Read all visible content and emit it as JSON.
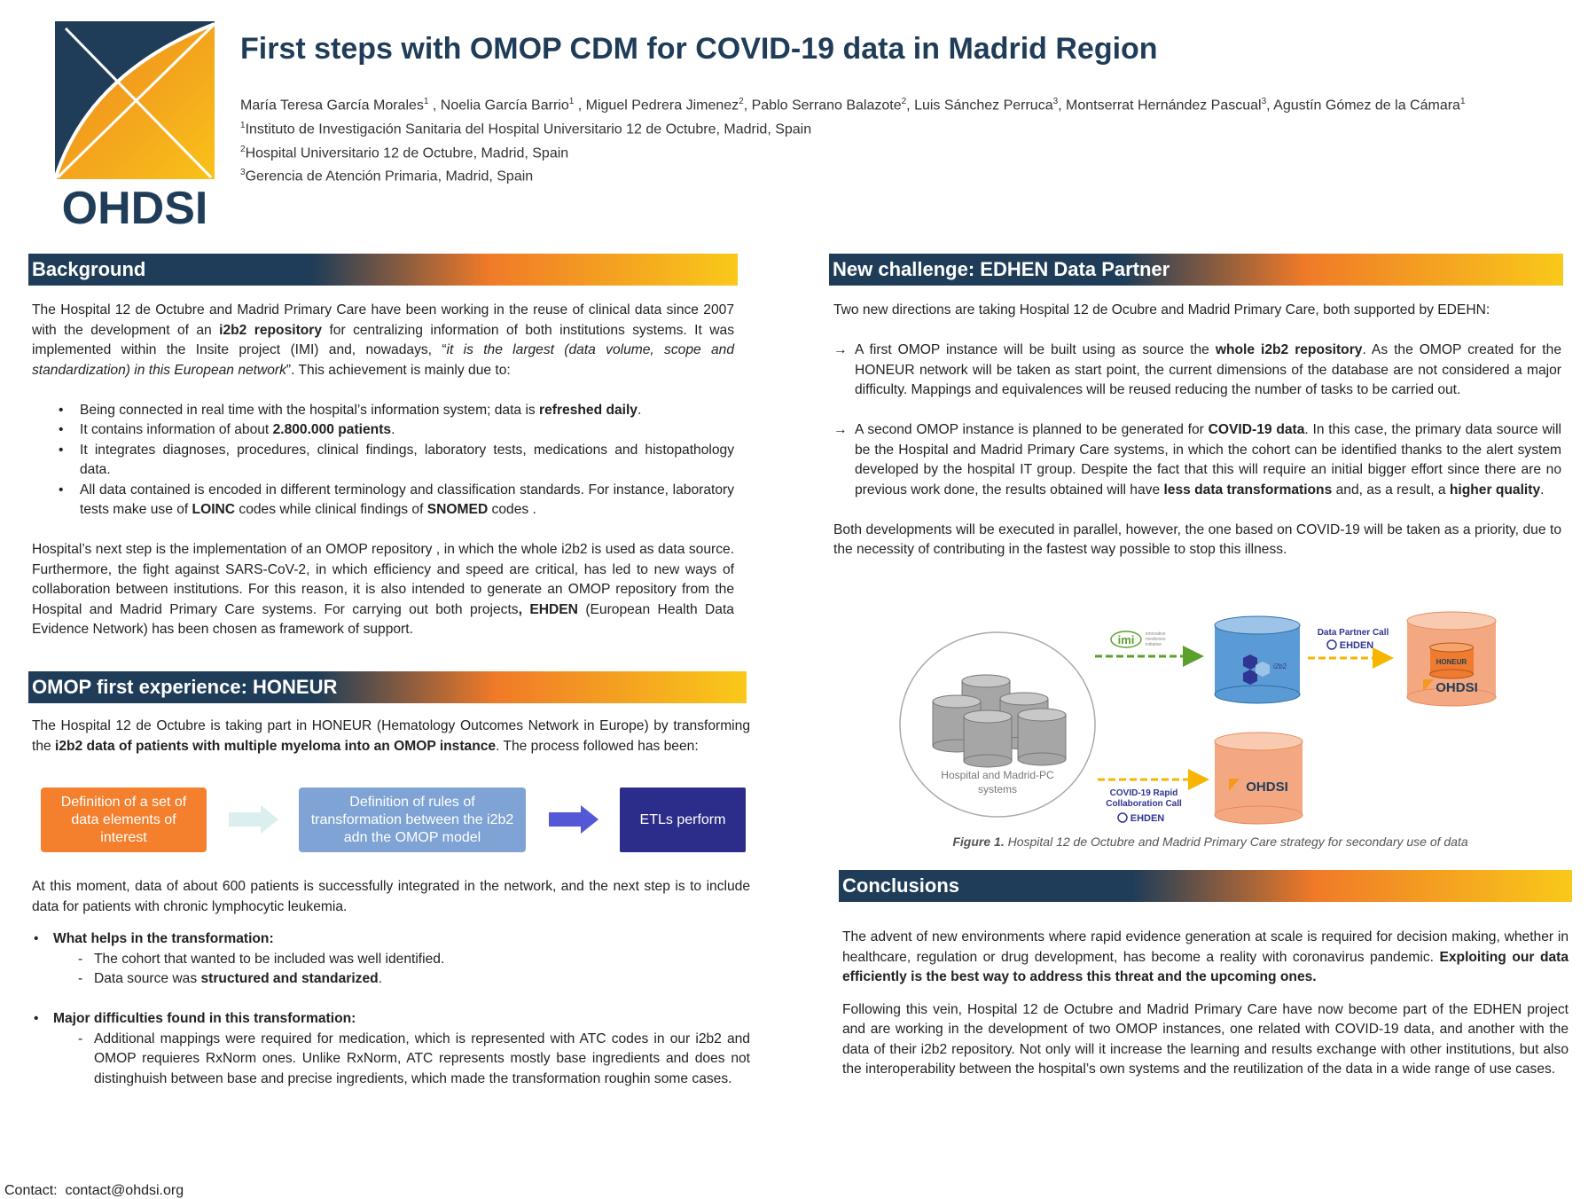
{
  "logo": {
    "text": "OHDSI",
    "colors": {
      "navy": "#1f3d58",
      "orange": "#f39a1e",
      "yellow": "#f9c21a"
    }
  },
  "title": "First steps with OMOP CDM for COVID-19 data in Madrid Region",
  "authors": {
    "names": [
      {
        "t": "María Teresa García Morales"
      },
      {
        "t": "1",
        "s": 1
      },
      {
        "t": " , Noelia García Barrio"
      },
      {
        "t": "1",
        "s": 1
      },
      {
        "t": " , Miguel Pedrera Jimenez"
      },
      {
        "t": "2",
        "s": 1
      },
      {
        "t": ", Pablo Serrano Balazote"
      },
      {
        "t": "2",
        "s": 1
      },
      {
        "t": ", Luis Sánchez Perruca"
      },
      {
        "t": "3",
        "s": 1
      },
      {
        "t": ", Montserrat Hernández Pascual"
      },
      {
        "t": "3",
        "s": 1
      },
      {
        "t": ", Agustín Gómez de la Cámara"
      },
      {
        "t": "1",
        "s": 1
      }
    ],
    "aff1": [
      {
        "t": "1",
        "s": 1
      },
      {
        "t": "Instituto de Investigación Sanitaria del Hospital Universitario 12 de Octubre, Madrid, Spain"
      }
    ],
    "aff2": [
      {
        "t": "2",
        "s": 1
      },
      {
        "t": "Hospital Universitario 12 de Octubre, Madrid, Spain"
      }
    ],
    "aff3": [
      {
        "t": "3",
        "s": 1
      },
      {
        "t": "Gerencia de Atención Primaria, Madrid, Spain"
      }
    ]
  },
  "background": {
    "heading": "Background",
    "p1": [
      {
        "t": "The Hospital 12 de Octubre and Madrid Primary Care have been working in the reuse of clinical data since 2007 with the development of an "
      },
      {
        "t": "i2b2 repository",
        "b": 1
      },
      {
        "t": " for centralizing information of both institutions systems. It was implemented within the Insite project (IMI) and, nowadays, “"
      },
      {
        "t": "it is the largest (data volume, scope and standardization) in this European network",
        "i": 1
      },
      {
        "t": "”. This achievement is mainly due to:"
      }
    ],
    "bullets": [
      [
        {
          "t": "Being connected in real time with the hospital’s information system; data is "
        },
        {
          "t": "refreshed daily",
          "b": 1
        },
        {
          "t": "."
        }
      ],
      [
        {
          "t": "It contains information of about "
        },
        {
          "t": "2.800.000 patients",
          "b": 1
        },
        {
          "t": "."
        }
      ],
      [
        {
          "t": "It integrates diagnoses, procedures, clinical findings, laboratory tests, medications and histopathology data."
        }
      ],
      [
        {
          "t": "All data contained is encoded in different terminology and classification standards. For instance, laboratory tests make use of "
        },
        {
          "t": "LOINC",
          "b": 1
        },
        {
          "t": " codes while clinical findings of "
        },
        {
          "t": "SNOMED",
          "b": 1
        },
        {
          "t": " codes ."
        }
      ]
    ],
    "p2": [
      {
        "t": "Hospital’s next step is the implementation of an OMOP repository , in which the whole i2b2 is used as data source. Furthermore, the fight against SARS-CoV-2, in which efficiency and speed are critical, has led to new ways of collaboration between institutions. For this reason, it is also intended to generate an OMOP repository from the Hospital and Madrid Primary Care systems. For carrying out both projects"
      },
      {
        "t": ", EHDEN",
        "b": 1
      },
      {
        "t": " (European Health Data Evidence Network) has been chosen as framework of support."
      }
    ]
  },
  "honeur": {
    "heading": "OMOP first experience: HONEUR",
    "p1": [
      {
        "t": "The Hospital 12 de Octubre is taking part in HONEUR (Hematology Outcomes Network in Europe) by transforming the "
      },
      {
        "t": "i2b2 data of patients with multiple myeloma into an OMOP instance",
        "b": 1
      },
      {
        "t": ". The process followed has been:"
      }
    ],
    "steps": [
      "Definition of a set of data elements of interest",
      "Definition of rules of transformation between the i2b2 adn the OMOP model",
      "ETLs perform"
    ],
    "p2": [
      {
        "t": "At this moment, data of about 600 patients is successfully integrated in the network, and the next step is to include data for patients with chronic lymphocytic leukemia."
      }
    ],
    "helps_title": [
      {
        "t": "What helps in the transformation:",
        "b": 1
      }
    ],
    "helps": [
      [
        {
          "t": "The cohort that wanted to be included was well identified."
        }
      ],
      [
        {
          "t": "Data source was "
        },
        {
          "t": "structured and standarized",
          "b": 1
        },
        {
          "t": "."
        }
      ]
    ],
    "diff_title": [
      {
        "t": "Major difficulties found in this transformation:",
        "b": 1
      }
    ],
    "diffs": [
      [
        {
          "t": "Additional mappings were required for medication, which is represented with ATC codes in our i2b2 and OMOP requieres RxNorm ones. Unlike RxNorm, ATC represents mostly base ingredients and does not distinghuish between base and precise ingredients, which made the transformation roughin some cases."
        }
      ]
    ]
  },
  "challenge": {
    "heading": "New challenge: EDHEN Data Partner",
    "p1": [
      {
        "t": "Two new directions are taking Hospital 12 de Ocubre and Madrid Primary Care, both supported by EDEHN:"
      }
    ],
    "items": [
      [
        {
          "t": "A first OMOP instance will be built using as source the "
        },
        {
          "t": "whole i2b2 repository",
          "b": 1
        },
        {
          "t": ". As the OMOP created for the HONEUR network will be taken as start point, the current dimensions of the database are not considered a major difficulty. Mappings and equivalences will be reused reducing the number of tasks to be carried out."
        }
      ],
      [
        {
          "t": "A second OMOP instance is planned to be generated for "
        },
        {
          "t": "COVID-19 data",
          "b": 1
        },
        {
          "t": ". In this case, the primary data source will be the Hospital and Madrid Primary Care systems, in which the cohort can be identified thanks to the alert system developed by the hospital IT group. Despite the fact that this will require an initial bigger effort since there are no previous work done, the results obtained will have "
        },
        {
          "t": "less data transformations",
          "b": 1
        },
        {
          "t": " and, as a result, a "
        },
        {
          "t": "higher quality",
          "b": 1
        },
        {
          "t": "."
        }
      ]
    ],
    "p2": [
      {
        "t": "Both developments will be executed in parallel, however, the one based on COVID-19 will be taken as a priority, due to the necessity of contributing in the fastest way possible to stop this illness."
      }
    ]
  },
  "figure": {
    "systems_label": [
      "Hospital and Madrid-PC",
      "systems"
    ],
    "imi": "imi",
    "imi_sub": [
      "innovative",
      "medicines",
      "initiative"
    ],
    "i2b2": "i2b2",
    "data_partner_call": "Data Partner Call",
    "ehden": "EHDEN",
    "honeur": "HONEUR",
    "ohdsi": "OHDSI",
    "covid_call": [
      "COVID-19 Rapid",
      "Collaboration Call"
    ],
    "caption": [
      {
        "t": "Figure 1.",
        "b": 1
      },
      {
        "t": " Hospital 12 de Octubre and Madrid Primary Care strategy for secondary use of data"
      }
    ]
  },
  "conclusions": {
    "heading": "Conclusions",
    "p1": [
      {
        "t": "The advent of new environments where rapid evidence generation at scale is required for decision making, whether in healthcare, regulation or drug development, has become a reality with coronavirus pandemic. "
      },
      {
        "t": "Exploiting our data efficiently is the best way to address this threat and the upcoming ones.",
        "b": 1
      }
    ],
    "p2": [
      {
        "t": "Following this vein, Hospital 12 de Octubre and Madrid Primary Care have now become part of the EDHEN project and are working in the development of two OMOP instances, one related with COVID-19 data, and another with the data of their i2b2 repository. Not only will it increase the learning and results exchange with other institutions, but also the interoperability between the hospital’s own systems and the reutilization of the data in a wide range of use cases."
      }
    ]
  },
  "contact": "Contact:  contact@ohdsi.org"
}
